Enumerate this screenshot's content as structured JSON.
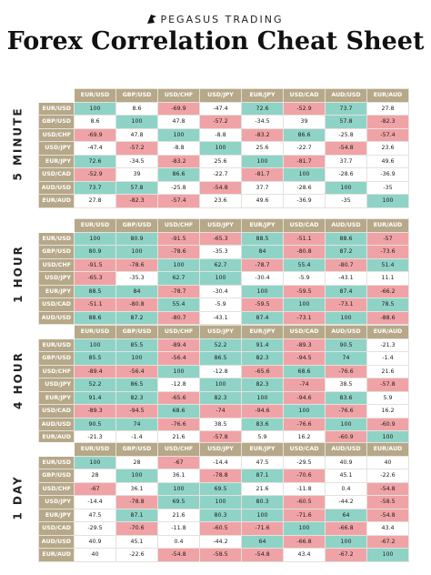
{
  "brand": "PEGASUS TRADING",
  "title": "Forex Correlation Cheat Sheet",
  "colors": {
    "header": "#b6a888",
    "positive": "#8fd3c7",
    "negative": "#f0a3a6"
  },
  "pairs": [
    "EUR/USD",
    "GBP/USD",
    "USD/CHF",
    "USD/JPY",
    "EUR/JPY",
    "USD/CAD",
    "AUD/USD",
    "EUR/AUD"
  ],
  "sections": [
    {
      "label": "5 MINUTE",
      "rows": [
        [
          "100",
          "8.6",
          "-69.9",
          "-47.4",
          "72.6",
          "-52.9",
          "73.7",
          "27.8"
        ],
        [
          "8.6",
          "100",
          "47.8",
          "-57.2",
          "-34.5",
          "39",
          "57.8",
          "-82.3"
        ],
        [
          "-69.9",
          "47.8",
          "100",
          "-8.8",
          "-83.2",
          "86.6",
          "-25.8",
          "-57.4"
        ],
        [
          "-47.4",
          "-57.2",
          "-8.8",
          "100",
          "25.6",
          "-22.7",
          "-54.8",
          "23.6"
        ],
        [
          "72.6",
          "-34.5",
          "-83.2",
          "25.6",
          "100",
          "-81.7",
          "37.7",
          "49.6"
        ],
        [
          "-52.9",
          "39",
          "86.6",
          "-22.7",
          "-81.7",
          "100",
          "-28.6",
          "-36.9"
        ],
        [
          "73.7",
          "57.8",
          "-25.8",
          "-54.8",
          "37.7",
          "-28.6",
          "100",
          "-35"
        ],
        [
          "27.8",
          "-82.3",
          "-57.4",
          "23.6",
          "49.6",
          "-36.9",
          "-35",
          "100"
        ]
      ]
    },
    {
      "label": "1 HOUR",
      "rows": [
        [
          "100",
          "80.9",
          "-91.5",
          "-65.3",
          "88.5",
          "-51.1",
          "88.6",
          "-57"
        ],
        [
          "80.9",
          "100",
          "-78.6",
          "-35.3",
          "84",
          "-80.8",
          "87.2",
          "-73.6"
        ],
        [
          "-91.5",
          "-78.6",
          "100",
          "62.7",
          "-78.7",
          "55.4",
          "-80.7",
          "51.4"
        ],
        [
          "-65.3",
          "-35.3",
          "62.7",
          "100",
          "-30.4",
          "-5.9",
          "-43.1",
          "11.1"
        ],
        [
          "88.5",
          "84",
          "-78.7",
          "-30.4",
          "100",
          "-59.5",
          "87.4",
          "-66.2"
        ],
        [
          "-51.1",
          "-80.8",
          "55.4",
          "-5.9",
          "-59.5",
          "100",
          "-73.1",
          "78.5"
        ],
        [
          "88.6",
          "87.2",
          "-80.7",
          "-43.1",
          "87.4",
          "-73.1",
          "100",
          "-88.6"
        ],
        [
          "-57",
          "-73.6",
          "51.4",
          "11.1",
          "-66.2",
          "78.5",
          "-88.6",
          "100"
        ]
      ]
    },
    {
      "label": "4 HOUR",
      "rows": [
        [
          "100",
          "85.5",
          "-89.4",
          "52.2",
          "91.4",
          "-89.3",
          "90.5",
          "-21.3"
        ],
        [
          "85.5",
          "100",
          "-56.4",
          "86.5",
          "82.3",
          "-94.5",
          "74",
          "-1.4"
        ],
        [
          "-89.4",
          "-56.4",
          "100",
          "-12.8",
          "-65.6",
          "68.6",
          "-76.6",
          "21.6"
        ],
        [
          "52.2",
          "86.5",
          "-12.8",
          "100",
          "82.3",
          "-74",
          "38.5",
          "-57.8"
        ],
        [
          "91.4",
          "82.3",
          "-65.6",
          "82.3",
          "100",
          "-94.6",
          "83.6",
          "5.9"
        ],
        [
          "-89.3",
          "-94.5",
          "68.6",
          "-74",
          "-94.6",
          "100",
          "-76.6",
          "16.2"
        ],
        [
          "90.5",
          "74",
          "-76.6",
          "38.5",
          "83.6",
          "-76.6",
          "100",
          "-60.9"
        ],
        [
          "-21.3",
          "-1.4",
          "21.6",
          "-57.8",
          "5.9",
          "16.2",
          "-60.9",
          "100"
        ]
      ]
    },
    {
      "label": "1 DAY",
      "rows": [
        [
          "100",
          "28",
          "-67",
          "-14.4",
          "47.5",
          "-29.5",
          "40.9",
          "40"
        ],
        [
          "28",
          "100",
          "36.1",
          "-78.8",
          "87.1",
          "-70.6",
          "45.1",
          "-22.6"
        ],
        [
          "-67",
          "36.1",
          "100",
          "69.5",
          "21.6",
          "-11.8",
          "0.4",
          "-54.8"
        ],
        [
          "-14.4",
          "-78.8",
          "69.5",
          "100",
          "80.3",
          "-60.5",
          "-44.2",
          "-58.5"
        ],
        [
          "47.5",
          "87.1",
          "21.6",
          "80.3",
          "100",
          "-71.6",
          "64",
          "-54.8"
        ],
        [
          "-29.5",
          "-70.6",
          "-11.8",
          "-60.5",
          "-71.6",
          "100",
          "-66.8",
          "43.4"
        ],
        [
          "40.9",
          "45.1",
          "0.4",
          "-44.2",
          "64",
          "-66.8",
          "100",
          "-67.2"
        ],
        [
          "40",
          "-22.6",
          "-54.8",
          "-58.5",
          "-54.8",
          "43.4",
          "-67.2",
          "100"
        ]
      ]
    }
  ]
}
